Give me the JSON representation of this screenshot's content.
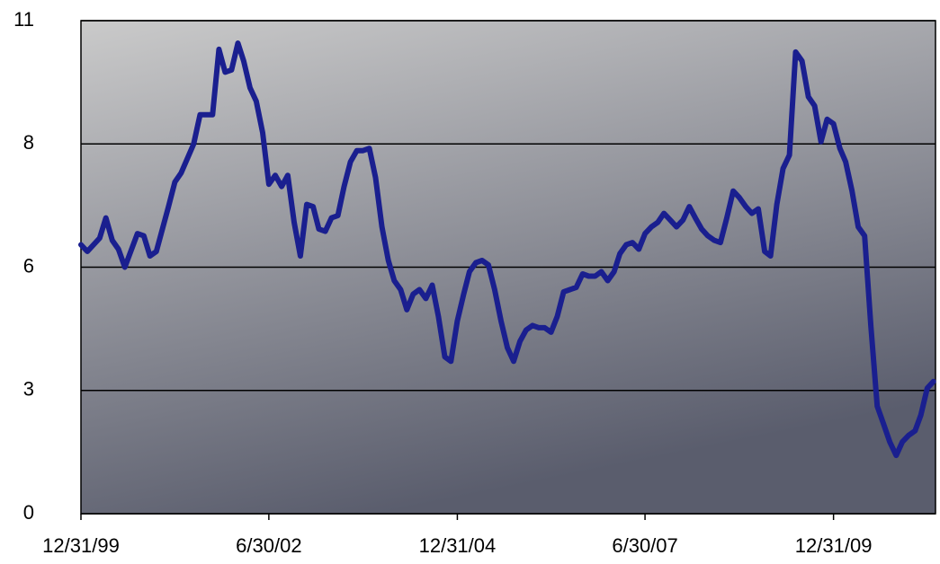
{
  "chart_data": {
    "type": "line",
    "color": "#1a1f8f",
    "grid": true,
    "xlim": [
      "12/31/99",
      "5/10/11"
    ],
    "xticks": [
      "12/31/99",
      "6/30/02",
      "12/31/04",
      "6/30/07",
      "12/31/09"
    ],
    "ylim": [
      0,
      11
    ],
    "yticks": [
      0,
      {
        "value": 2.75,
        "label": "3"
      },
      {
        "value": 5.5,
        "label": "6"
      },
      {
        "value": 8.25,
        "label": "8"
      },
      11
    ],
    "x": [
      "12/31/99",
      "1/31/00",
      "3/31/00",
      "4/30/00",
      "5/31/00",
      "6/30/00",
      "7/31/00",
      "9/30/00",
      "10/31/00",
      "11/30/00",
      "12/31/00",
      "2/28/01",
      "3/31/01",
      "4/30/01",
      "6/30/01",
      "7/31/01",
      "9/30/01",
      "10/31/01",
      "11/30/01",
      "12/31/01",
      "1/31/02",
      "2/28/02",
      "3/31/02",
      "4/30/02",
      "5/31/02",
      "6/30/02",
      "7/31/02",
      "8/31/02",
      "9/30/02",
      "10/31/02",
      "11/30/02",
      "12/31/02",
      "1/31/03",
      "2/28/03",
      "3/31/03",
      "4/30/03",
      "5/31/03",
      "6/30/03",
      "7/31/03",
      "8/31/03",
      "9/30/03",
      "10/31/03",
      "11/30/03",
      "12/31/03",
      "1/31/04",
      "2/29/04",
      "3/31/04",
      "4/30/04",
      "5/31/04",
      "6/30/04",
      "7/31/04",
      "8/31/04",
      "9/30/04",
      "10/31/04",
      "11/30/04",
      "12/31/04",
      "1/31/05",
      "2/28/05",
      "3/31/05",
      "4/30/05",
      "5/31/05",
      "6/30/05",
      "7/31/05",
      "8/31/05",
      "9/30/05",
      "10/31/05",
      "11/30/05",
      "12/31/05",
      "1/31/06",
      "2/28/06",
      "3/31/06",
      "4/30/06",
      "5/31/06",
      "6/30/06",
      "7/31/06",
      "8/31/06",
      "9/30/06",
      "10/31/06",
      "11/30/06",
      "12/31/06",
      "1/31/07",
      "2/28/07",
      "3/31/07",
      "4/30/07",
      "5/31/07",
      "6/30/07",
      "7/31/07",
      "8/31/07",
      "9/30/07",
      "10/31/07",
      "11/30/07",
      "12/31/07",
      "1/31/08",
      "2/29/08",
      "3/31/08",
      "4/30/08",
      "5/31/08",
      "6/30/08",
      "7/31/08",
      "8/31/08",
      "9/30/08",
      "10/31/08",
      "11/30/08",
      "12/31/08",
      "1/31/09",
      "2/28/09",
      "3/31/09",
      "4/30/09",
      "5/31/09",
      "6/30/09",
      "7/31/09",
      "8/31/09",
      "9/30/09",
      "10/31/09",
      "11/30/09",
      "12/31/09",
      "1/31/10",
      "2/28/10",
      "3/31/10",
      "4/30/10",
      "5/31/10",
      "6/30/10",
      "7/31/10",
      "8/31/10",
      "9/30/10",
      "10/31/10",
      "11/30/10",
      "12/31/10",
      "1/31/11",
      "2/28/11",
      "3/31/11",
      "4/30/11"
    ],
    "values": [
      6.0,
      5.85,
      6.15,
      6.6,
      6.1,
      5.9,
      5.5,
      6.25,
      6.2,
      5.75,
      5.85,
      6.85,
      7.4,
      7.6,
      8.25,
      8.9,
      8.9,
      10.36,
      9.85,
      9.9,
      10.5,
      10.1,
      9.5,
      9.2,
      8.5,
      7.35,
      7.55,
      7.3,
      7.55,
      6.5,
      5.75,
      6.9,
      6.85,
      6.35,
      6.3,
      6.6,
      6.65,
      7.3,
      7.85,
      8.1,
      8.1,
      8.15,
      7.5,
      6.4,
      5.65,
      5.2,
      5.0,
      4.55,
      4.9,
      5.0,
      4.8,
      5.1,
      4.4,
      3.5,
      3.4,
      4.3,
      4.9,
      5.4,
      5.6,
      5.65,
      5.55,
      5.0,
      4.3,
      3.7,
      3.4,
      3.85,
      4.1,
      4.2,
      4.15,
      4.15,
      4.05,
      4.4,
      4.95,
      5.0,
      5.05,
      5.35,
      5.3,
      5.3,
      5.4,
      5.2,
      5.4,
      5.8,
      6.0,
      6.05,
      5.9,
      6.25,
      6.4,
      6.5,
      6.7,
      6.55,
      6.4,
      6.55,
      6.85,
      6.6,
      6.35,
      6.2,
      6.1,
      6.05,
      6.6,
      7.2,
      7.05,
      6.85,
      6.7,
      6.8,
      5.85,
      5.75,
      6.9,
      7.7,
      8.0,
      10.3,
      10.1,
      9.3,
      9.1,
      8.3,
      8.8,
      8.7,
      8.15,
      7.85,
      7.2,
      6.4,
      6.2,
      4.2,
      2.4,
      2.0,
      1.6,
      1.3,
      1.6,
      1.75,
      1.85,
      2.2,
      2.8,
      2.95
    ]
  }
}
